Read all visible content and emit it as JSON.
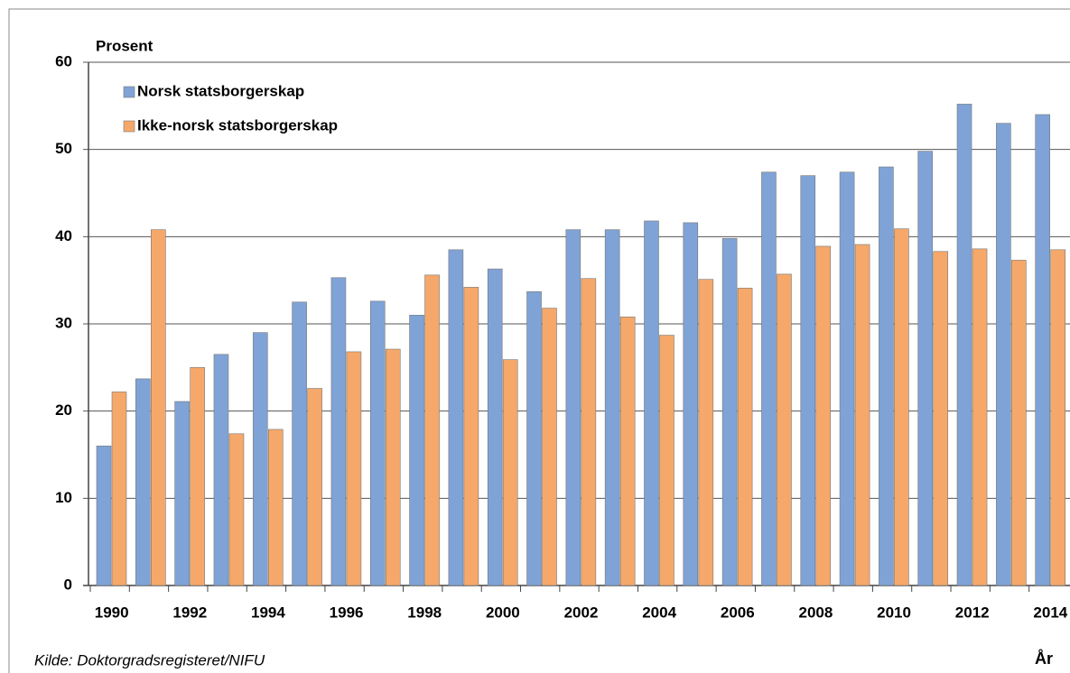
{
  "chart_data": {
    "type": "bar",
    "y_label": "Prosent",
    "x_label": "År",
    "source": "Kilde:  Doktorgradsregisteret/NIFU",
    "categories": [
      "1990",
      null,
      "1992",
      null,
      "1994",
      null,
      "1996",
      null,
      "1998",
      null,
      "2000",
      null,
      "2002",
      null,
      "2004",
      null,
      "2006",
      null,
      "2008",
      null,
      "2010",
      null,
      "2012",
      null,
      "2014"
    ],
    "series": [
      {
        "name": "Norsk statsborgerskap",
        "color": "#7fa3d6",
        "values": [
          16,
          23.7,
          21.1,
          26.5,
          29,
          32.5,
          35.3,
          32.6,
          31,
          38.5,
          36.3,
          33.7,
          40.8,
          40.8,
          41.8,
          41.6,
          39.8,
          47.4,
          47,
          47.4,
          48,
          49.8,
          55.2,
          53,
          54
        ]
      },
      {
        "name": "Ikke-norsk statsborgerskap",
        "color": "#f5a86a",
        "values": [
          22.2,
          40.8,
          25,
          17.4,
          17.9,
          22.6,
          26.8,
          27.1,
          35.6,
          34.2,
          25.9,
          31.8,
          35.2,
          30.8,
          28.7,
          35.1,
          34.1,
          35.7,
          38.9,
          39.1,
          40.9,
          38.3,
          38.6,
          37.3,
          38.5
        ]
      }
    ],
    "ylim": [
      0,
      60
    ],
    "yticks": [
      0,
      10,
      20,
      30,
      40,
      50,
      60
    ],
    "grid": true
  }
}
